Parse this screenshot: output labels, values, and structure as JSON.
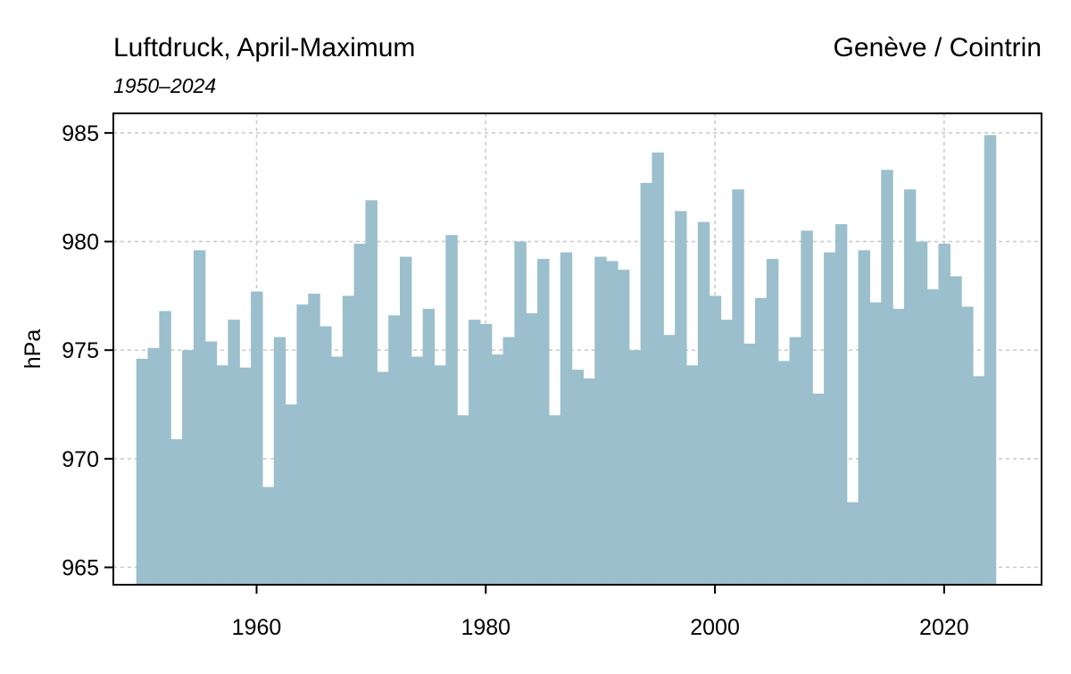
{
  "title": "Luftdruck, April-Maximum",
  "subtitle": "1950–2024",
  "station": "Genève / Cointrin",
  "chart_data": {
    "type": "bar",
    "ylabel": "hPa",
    "xlabel": "",
    "bar_color": "#9bbfcc",
    "grid": true,
    "grid_color": "#c8c8c8",
    "xlim": [
      1947.5,
      2028.5
    ],
    "ylim": [
      964.2,
      985.9
    ],
    "x_ticks": [
      1960,
      1980,
      2000,
      2020
    ],
    "y_ticks": [
      965,
      970,
      975,
      980,
      985
    ],
    "x": [
      1950,
      1951,
      1952,
      1953,
      1954,
      1955,
      1956,
      1957,
      1958,
      1959,
      1960,
      1961,
      1962,
      1963,
      1964,
      1965,
      1966,
      1967,
      1968,
      1969,
      1970,
      1971,
      1972,
      1973,
      1974,
      1975,
      1976,
      1977,
      1978,
      1979,
      1980,
      1981,
      1982,
      1983,
      1984,
      1985,
      1986,
      1987,
      1988,
      1989,
      1990,
      1991,
      1992,
      1993,
      1994,
      1995,
      1996,
      1997,
      1998,
      1999,
      2000,
      2001,
      2002,
      2003,
      2004,
      2005,
      2006,
      2007,
      2008,
      2009,
      2010,
      2011,
      2012,
      2013,
      2014,
      2015,
      2016,
      2017,
      2018,
      2019,
      2020,
      2021,
      2022,
      2023,
      2024
    ],
    "values": [
      974.6,
      975.1,
      976.8,
      970.9,
      975.0,
      979.6,
      975.4,
      974.3,
      976.4,
      974.2,
      977.7,
      968.7,
      975.6,
      972.5,
      977.1,
      977.6,
      976.1,
      974.7,
      977.5,
      979.9,
      981.9,
      974.0,
      976.6,
      979.3,
      974.7,
      976.9,
      974.3,
      980.3,
      972.0,
      976.4,
      976.2,
      974.8,
      975.6,
      980.0,
      976.7,
      979.2,
      972.0,
      979.5,
      974.1,
      973.7,
      979.3,
      979.1,
      978.7,
      975.0,
      982.7,
      984.1,
      975.7,
      981.4,
      974.3,
      980.9,
      977.5,
      976.4,
      982.4,
      975.3,
      977.4,
      979.2,
      974.5,
      975.6,
      980.5,
      973.0,
      979.5,
      980.8,
      968.0,
      979.6,
      977.2,
      983.3,
      976.9,
      982.4,
      980.0,
      977.8,
      979.9,
      978.4,
      977.0,
      973.8,
      984.9
    ]
  }
}
